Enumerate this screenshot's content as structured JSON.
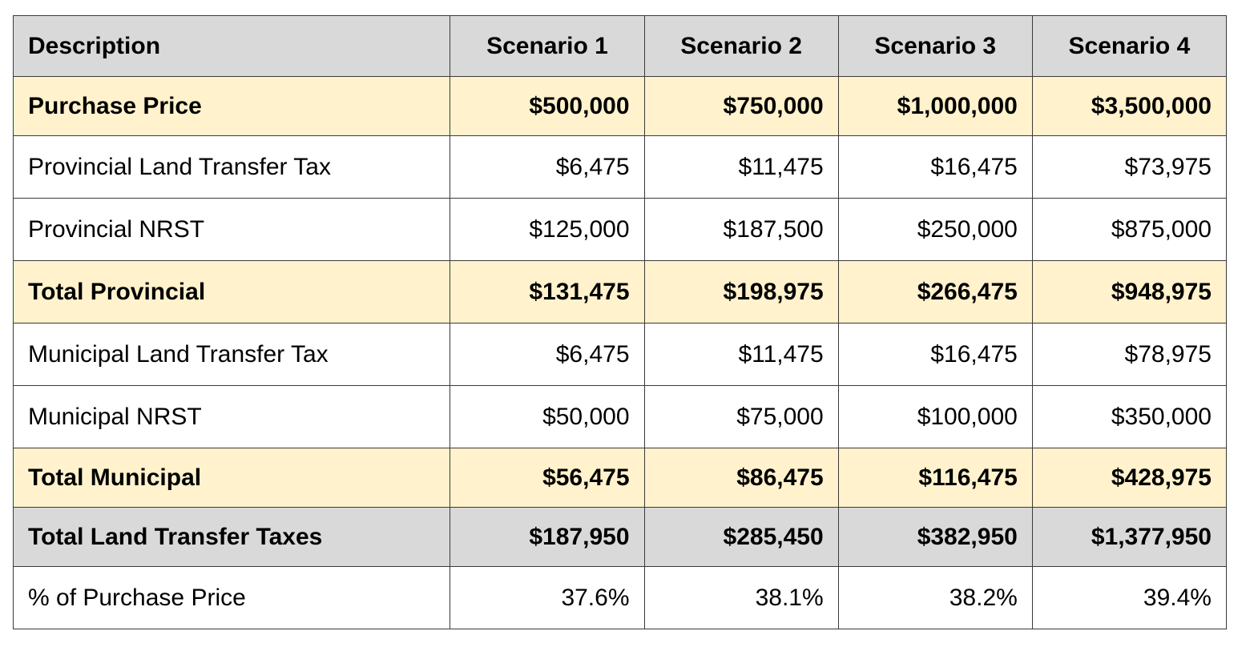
{
  "table": {
    "headers": [
      "Description",
      "Scenario 1",
      "Scenario 2",
      "Scenario 3",
      "Scenario 4"
    ],
    "rows": [
      {
        "label": "Purchase Price",
        "style": "highlight",
        "values": [
          "$500,000",
          "$750,000",
          "$1,000,000",
          "$3,500,000"
        ]
      },
      {
        "label": "Provincial Land Transfer Tax",
        "style": "plain",
        "values": [
          "$6,475",
          "$11,475",
          "$16,475",
          "$73,975"
        ]
      },
      {
        "label": "Provincial NRST",
        "style": "plain",
        "values": [
          "$125,000",
          "$187,500",
          "$250,000",
          "$875,000"
        ]
      },
      {
        "label": "Total Provincial",
        "style": "highlight",
        "values": [
          "$131,475",
          "$198,975",
          "$266,475",
          "$948,975"
        ]
      },
      {
        "label": "Municipal Land Transfer Tax",
        "style": "plain",
        "values": [
          "$6,475",
          "$11,475",
          "$16,475",
          "$78,975"
        ]
      },
      {
        "label": "Municipal NRST",
        "style": "plain",
        "values": [
          "$50,000",
          "$75,000",
          "$100,000",
          "$350,000"
        ]
      },
      {
        "label": "Total Municipal",
        "style": "highlight",
        "values": [
          "$56,475",
          "$86,475",
          "$116,475",
          "$428,975"
        ]
      },
      {
        "label": "Total Land Transfer Taxes",
        "style": "grey",
        "values": [
          "$187,950",
          "$285,450",
          "$382,950",
          "$1,377,950"
        ]
      },
      {
        "label": "% of Purchase Price",
        "style": "plain",
        "values": [
          "37.6%",
          "38.1%",
          "38.2%",
          "39.4%"
        ]
      }
    ]
  },
  "colors": {
    "header_bg": "#d9d9d9",
    "highlight_bg": "#fff2cc",
    "grey_row_bg": "#d9d9d9",
    "border": "#3a3a3a"
  }
}
